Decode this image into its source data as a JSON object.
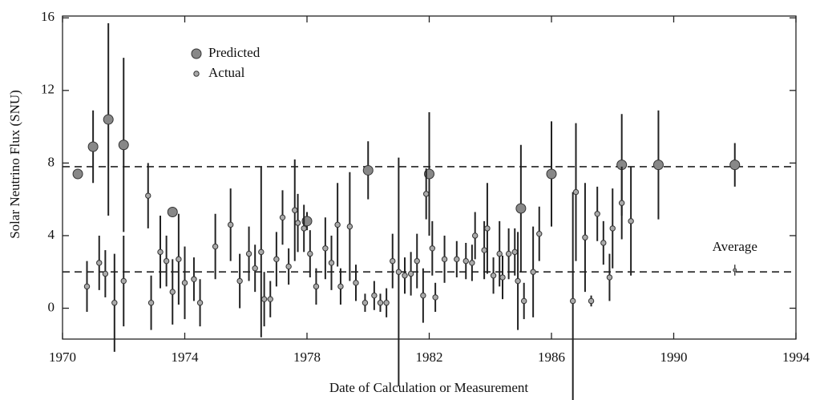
{
  "chart_data": {
    "type": "scatter",
    "x_label": "Date of Calculation or Measurement",
    "y_label": "Solar Neutrino Flux (SNU)",
    "xlim": [
      1970,
      1994
    ],
    "ylim": [
      -1.7,
      16.1
    ],
    "xticks": [
      1970,
      1974,
      1978,
      1982,
      1986,
      1990,
      1994
    ],
    "yticks": [
      0,
      4,
      8,
      12,
      16
    ],
    "hlines": [
      7.8,
      2.0
    ],
    "legend": "upper left",
    "series": [
      {
        "name": "Predicted",
        "color": "#888888",
        "size": 6,
        "x": [
          1970.5,
          1971.0,
          1971.5,
          1972.0,
          1973.6,
          1978.0,
          1980.0,
          1982.0,
          1985.0,
          1986.0,
          1988.3,
          1989.5,
          1992.0
        ],
        "values": [
          7.4,
          8.9,
          10.4,
          9.0,
          5.3,
          4.8,
          7.6,
          7.4,
          5.5,
          7.4,
          7.9,
          7.9,
          7.9
        ],
        "errors": [
          0,
          2.0,
          5.3,
          4.8,
          0,
          0.5,
          1.6,
          3.4,
          3.5,
          2.9,
          2.8,
          3.0,
          1.2
        ]
      },
      {
        "name": "Actual",
        "color": "#aaaaaa",
        "size": 3.2,
        "x": [
          1970.8,
          1971.2,
          1971.4,
          1971.7,
          1972.0,
          1972.8,
          1972.9,
          1973.2,
          1973.4,
          1973.6,
          1973.8,
          1974.0,
          1974.3,
          1974.5,
          1975.0,
          1975.5,
          1975.8,
          1976.1,
          1976.3,
          1976.5,
          1976.6,
          1976.8,
          1977.0,
          1977.2,
          1977.4,
          1977.6,
          1977.7,
          1977.9,
          1978.1,
          1978.3,
          1978.6,
          1978.8,
          1979.0,
          1979.1,
          1979.4,
          1979.6,
          1979.9,
          1980.2,
          1980.4,
          1980.6,
          1980.8,
          1981.0,
          1981.2,
          1981.4,
          1981.6,
          1981.8,
          1981.9,
          1982.1,
          1982.2,
          1982.5,
          1982.9,
          1983.2,
          1983.4,
          1983.5,
          1983.8,
          1983.9,
          1984.1,
          1984.3,
          1984.4,
          1984.6,
          1984.8,
          1984.9,
          1985.1,
          1985.4,
          1985.6,
          1986.7,
          1986.8,
          1987.1,
          1987.3,
          1987.5,
          1987.7,
          1987.9,
          1988.0,
          1988.3,
          1988.6
        ],
        "values": [
          1.2,
          2.5,
          1.9,
          0.3,
          1.5,
          6.2,
          0.3,
          3.1,
          2.6,
          0.9,
          2.7,
          1.4,
          1.6,
          0.3,
          3.4,
          4.6,
          1.5,
          3.0,
          2.2,
          3.1,
          0.5,
          0.5,
          2.7,
          5.0,
          2.3,
          5.4,
          4.7,
          4.4,
          3.0,
          1.2,
          3.3,
          2.5,
          4.6,
          1.2,
          4.5,
          1.4,
          0.3,
          0.7,
          0.3,
          0.3,
          2.6,
          2.0,
          1.8,
          1.9,
          2.6,
          0.7,
          6.3,
          3.3,
          0.6,
          2.7,
          2.7,
          2.6,
          2.5,
          4.0,
          3.2,
          4.4,
          1.8,
          3.0,
          1.7,
          3.0,
          3.1,
          1.5,
          0.4,
          2.0,
          4.1,
          0.4,
          6.4,
          3.9,
          0.4,
          5.2,
          3.6,
          1.7,
          4.4,
          5.8,
          4.8
        ],
        "errors": [
          1.4,
          1.5,
          1.3,
          2.7,
          2.5,
          1.8,
          1.5,
          2.0,
          1.4,
          1.8,
          2.5,
          2.0,
          1.2,
          1.3,
          1.8,
          2.0,
          1.5,
          1.5,
          1.3,
          4.7,
          1.5,
          1.0,
          1.5,
          1.5,
          1.0,
          2.8,
          1.6,
          1.3,
          1.3,
          1.0,
          1.7,
          1.5,
          2.3,
          1.0,
          3.0,
          1.0,
          0.5,
          0.8,
          0.5,
          0.8,
          1.5,
          6.3,
          1.0,
          1.2,
          1.5,
          1.5,
          1.4,
          1.5,
          0.8,
          1.3,
          1.0,
          1.0,
          1.0,
          1.3,
          1.6,
          2.5,
          1.0,
          1.8,
          1.2,
          1.4,
          1.3,
          2.7,
          1.0,
          2.5,
          1.5,
          6.0,
          3.8,
          3.0,
          0.3,
          1.5,
          1.2,
          1.3,
          2.2,
          2.0,
          3.0
        ]
      }
    ],
    "annotation": {
      "text": "Average",
      "x": 1992.0,
      "value": 2.1,
      "error": 0.3
    }
  }
}
